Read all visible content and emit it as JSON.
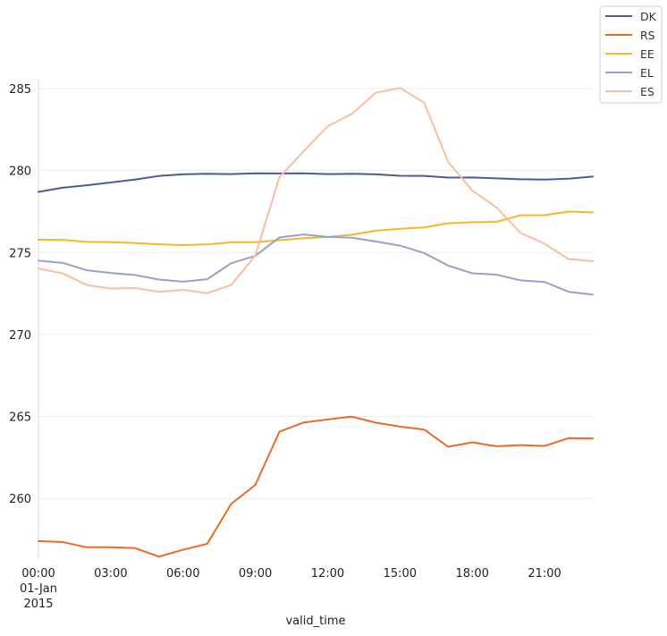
{
  "chart_data": {
    "type": "line",
    "xlabel": "valid_time",
    "ylabel": "",
    "x_tick_labels": [
      {
        "hour": 0,
        "lines": [
          "00:00",
          "01-Jan",
          "2015"
        ]
      },
      {
        "hour": 3,
        "lines": [
          "03:00"
        ]
      },
      {
        "hour": 6,
        "lines": [
          "06:00"
        ]
      },
      {
        "hour": 9,
        "lines": [
          "09:00"
        ]
      },
      {
        "hour": 12,
        "lines": [
          "12:00"
        ]
      },
      {
        "hour": 15,
        "lines": [
          "15:00"
        ]
      },
      {
        "hour": 18,
        "lines": [
          "18:00"
        ]
      },
      {
        "hour": 21,
        "lines": [
          "21:00"
        ]
      }
    ],
    "x": [
      "2015-01-01 00:00",
      "2015-01-01 01:00",
      "2015-01-01 02:00",
      "2015-01-01 03:00",
      "2015-01-01 04:00",
      "2015-01-01 05:00",
      "2015-01-01 06:00",
      "2015-01-01 07:00",
      "2015-01-01 08:00",
      "2015-01-01 09:00",
      "2015-01-01 10:00",
      "2015-01-01 11:00",
      "2015-01-01 12:00",
      "2015-01-01 13:00",
      "2015-01-01 14:00",
      "2015-01-01 15:00",
      "2015-01-01 16:00",
      "2015-01-01 17:00",
      "2015-01-01 18:00",
      "2015-01-01 19:00",
      "2015-01-01 20:00",
      "2015-01-01 21:00",
      "2015-01-01 22:00",
      "2015-01-01 23:00"
    ],
    "xlim": [
      "2015-01-01 00:00",
      "2015-01-01 23:00"
    ],
    "ylim": [
      256.3,
      285.6
    ],
    "y_ticks": [
      260,
      265,
      270,
      275,
      280,
      285
    ],
    "grid": true,
    "legend_position": "top-right, outside",
    "series": [
      {
        "name": "DK",
        "color": "#4e5a9a",
        "values": [
          278.7,
          278.95,
          279.1,
          279.27,
          279.45,
          279.67,
          279.77,
          279.8,
          279.78,
          279.83,
          279.82,
          279.83,
          279.78,
          279.8,
          279.77,
          279.68,
          279.67,
          279.57,
          279.58,
          279.52,
          279.47,
          279.45,
          279.5,
          279.63
        ]
      },
      {
        "name": "RS",
        "color": "#e86c27",
        "values": [
          257.4,
          257.34,
          257.02,
          257.02,
          256.97,
          256.45,
          256.87,
          257.23,
          259.67,
          260.83,
          264.07,
          264.63,
          264.82,
          264.99,
          264.62,
          264.38,
          264.2,
          263.15,
          263.42,
          263.18,
          263.25,
          263.2,
          263.68,
          263.65
        ]
      },
      {
        "name": "EE",
        "color": "#f7b62b",
        "values": [
          275.78,
          275.77,
          275.65,
          275.63,
          275.58,
          275.5,
          275.45,
          275.5,
          275.62,
          275.63,
          275.75,
          275.87,
          275.95,
          276.08,
          276.33,
          276.45,
          276.53,
          276.78,
          276.85,
          276.87,
          277.27,
          277.28,
          277.5,
          277.45
        ]
      },
      {
        "name": "EL",
        "color": "#98a1c8",
        "values": [
          274.5,
          274.37,
          273.92,
          273.75,
          273.63,
          273.35,
          273.22,
          273.37,
          274.35,
          274.8,
          275.92,
          276.1,
          275.95,
          275.9,
          275.67,
          275.42,
          274.97,
          274.2,
          273.73,
          273.65,
          273.3,
          273.2,
          272.6,
          272.43
        ]
      },
      {
        "name": "ES",
        "color": "#f7bfa0",
        "values": [
          274.02,
          273.73,
          273.02,
          272.8,
          272.83,
          272.6,
          272.72,
          272.52,
          273.02,
          274.82,
          279.6,
          281.17,
          282.7,
          283.45,
          284.75,
          285.03,
          284.15,
          280.52,
          278.78,
          277.75,
          276.2,
          275.53,
          274.6,
          274.47
        ]
      }
    ]
  }
}
